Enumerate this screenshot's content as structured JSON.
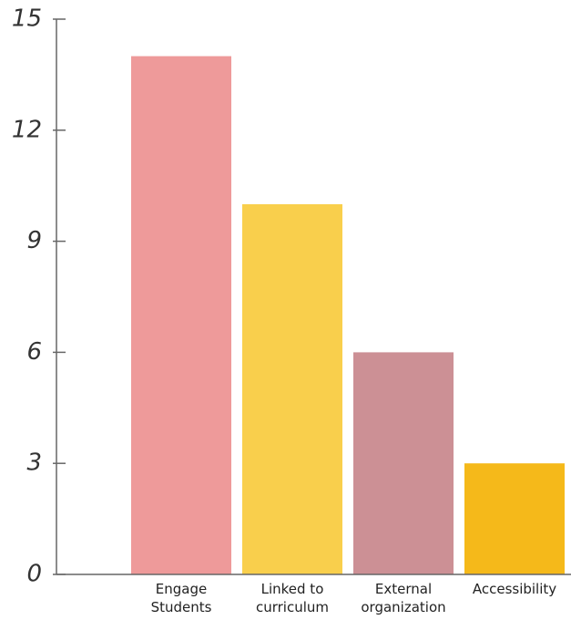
{
  "chart_data": {
    "type": "bar",
    "categories": [
      "Engage Students",
      "Linked to curriculum",
      "External organization",
      "Accessibility"
    ],
    "values": [
      14,
      10,
      6,
      3
    ],
    "colors": [
      "#ee9a9a",
      "#f9cf4c",
      "#cc9095",
      "#f5b91a"
    ],
    "ylim": [
      0,
      15
    ],
    "yticks": [
      0,
      3,
      6,
      9,
      12,
      15
    ]
  }
}
